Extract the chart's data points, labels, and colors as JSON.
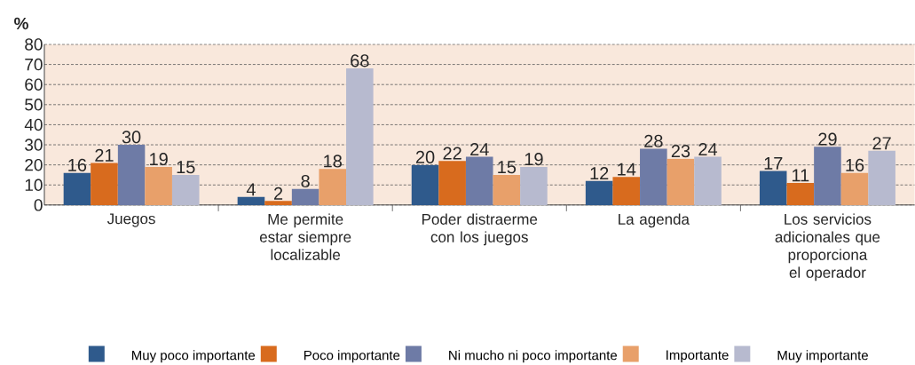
{
  "chart_data": {
    "type": "bar",
    "ylabel": "%",
    "categories": [
      "Juegos",
      "Me permite estar siempre localizable",
      "Poder distraerme con los juegos",
      "La agenda",
      "Los servicios adicionales que proporciona el operador"
    ],
    "series": [
      {
        "name": "Muy poco importante",
        "color": "#2f5a8c",
        "values": [
          16,
          4,
          20,
          12,
          17
        ]
      },
      {
        "name": "Poco importante",
        "color": "#d86b1e",
        "values": [
          21,
          2,
          22,
          14,
          11
        ]
      },
      {
        "name": "Ni mucho ni poco importante",
        "color": "#6e7ba6",
        "values": [
          30,
          8,
          24,
          28,
          29
        ]
      },
      {
        "name": "Importante",
        "color": "#e8a06a",
        "values": [
          19,
          18,
          15,
          23,
          16
        ]
      },
      {
        "name": "Muy importante",
        "color": "#b7bacf",
        "values": [
          15,
          68,
          19,
          24,
          27
        ]
      }
    ],
    "ylim": [
      0,
      80
    ],
    "yticks": [
      0,
      10,
      20,
      30,
      40,
      50,
      60,
      70,
      80
    ],
    "grid": "y",
    "legend": "bottom",
    "data_labels": true
  }
}
